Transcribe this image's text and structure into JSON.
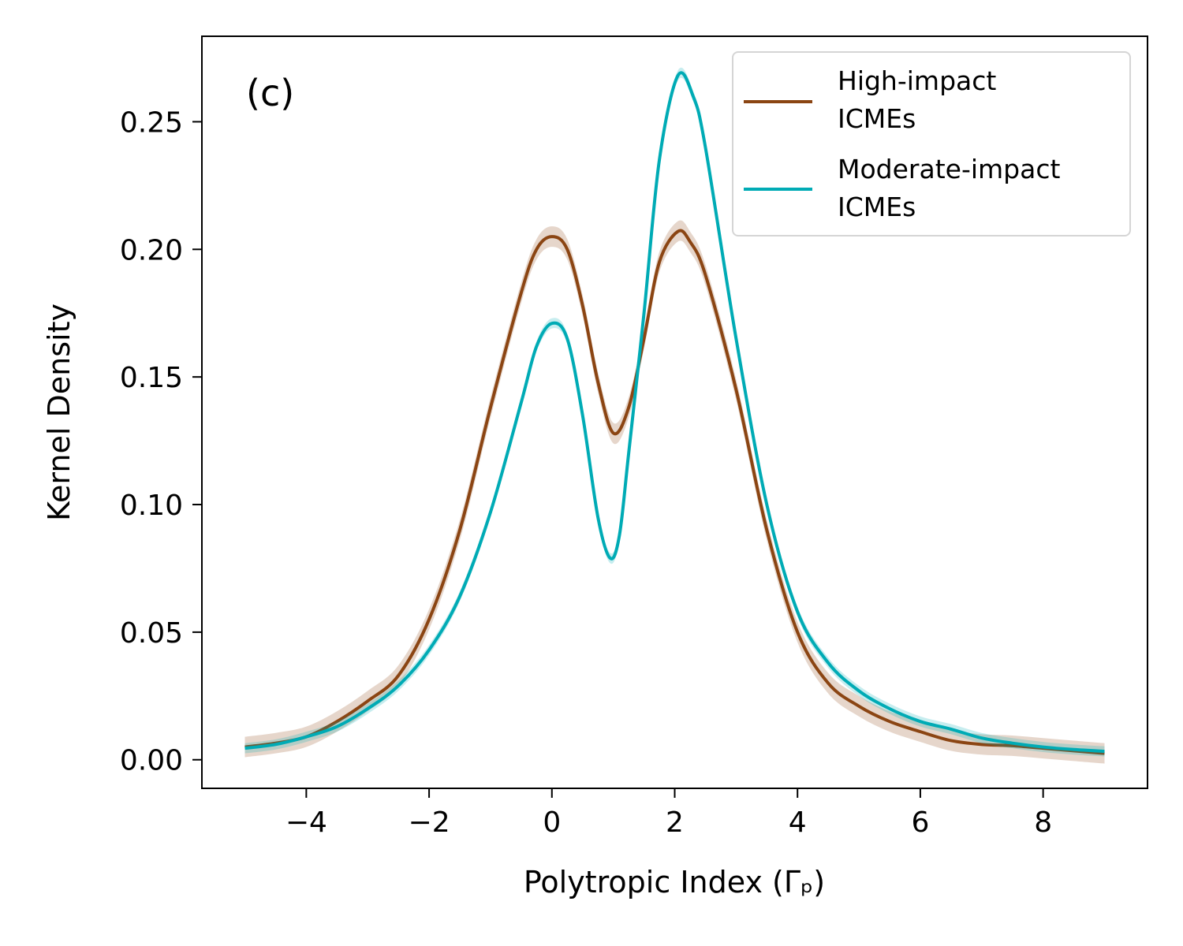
{
  "chart_data": {
    "type": "line",
    "panel_label": "(c)",
    "xlabel": "Polytropic Index (Γₚ)",
    "ylabel": "Kernel Density",
    "xlim": [
      -5.7,
      9.7
    ],
    "ylim": [
      -0.0112,
      0.2835
    ],
    "xticks": [
      -4,
      -2,
      0,
      2,
      4,
      6,
      8
    ],
    "xtick_labels": [
      "−4",
      "−2",
      "0",
      "2",
      "4",
      "6",
      "8"
    ],
    "yticks": [
      0.0,
      0.05,
      0.1,
      0.15,
      0.2,
      0.25
    ],
    "ytick_labels": [
      "0.00",
      "0.05",
      "0.10",
      "0.15",
      "0.20",
      "0.25"
    ],
    "legend_position": "top-right",
    "series": [
      {
        "name": "High-impact ICMEs",
        "legend_lines": [
          "High-impact",
          "ICMEs"
        ],
        "color": "#8B4513",
        "band": 0.004,
        "points": [
          [
            -5.0,
            0.005
          ],
          [
            -4.5,
            0.0065
          ],
          [
            -4.0,
            0.009
          ],
          [
            -3.5,
            0.015
          ],
          [
            -3.0,
            0.023
          ],
          [
            -2.5,
            0.033
          ],
          [
            -2.0,
            0.055
          ],
          [
            -1.5,
            0.09
          ],
          [
            -1.0,
            0.138
          ],
          [
            -0.5,
            0.183
          ],
          [
            -0.25,
            0.2
          ],
          [
            0.0,
            0.205
          ],
          [
            0.25,
            0.2
          ],
          [
            0.5,
            0.178
          ],
          [
            0.75,
            0.148
          ],
          [
            1.0,
            0.128
          ],
          [
            1.25,
            0.138
          ],
          [
            1.5,
            0.165
          ],
          [
            1.75,
            0.195
          ],
          [
            2.05,
            0.207
          ],
          [
            2.25,
            0.203
          ],
          [
            2.5,
            0.19
          ],
          [
            3.0,
            0.145
          ],
          [
            3.5,
            0.09
          ],
          [
            4.0,
            0.05
          ],
          [
            4.5,
            0.03
          ],
          [
            5.0,
            0.021
          ],
          [
            5.5,
            0.015
          ],
          [
            6.0,
            0.011
          ],
          [
            6.5,
            0.0075
          ],
          [
            7.0,
            0.006
          ],
          [
            7.5,
            0.0055
          ],
          [
            8.0,
            0.0045
          ],
          [
            8.5,
            0.0035
          ],
          [
            9.0,
            0.0025
          ]
        ]
      },
      {
        "name": "Moderate-impact ICMEs",
        "legend_lines": [
          "Moderate-impact",
          "ICMEs"
        ],
        "color": "#00ABB5",
        "band": 0.002,
        "points": [
          [
            -5.0,
            0.0045
          ],
          [
            -4.5,
            0.006
          ],
          [
            -4.0,
            0.009
          ],
          [
            -3.5,
            0.013
          ],
          [
            -3.0,
            0.02
          ],
          [
            -2.5,
            0.029
          ],
          [
            -2.0,
            0.043
          ],
          [
            -1.5,
            0.064
          ],
          [
            -1.0,
            0.097
          ],
          [
            -0.5,
            0.14
          ],
          [
            -0.25,
            0.162
          ],
          [
            0.0,
            0.171
          ],
          [
            0.25,
            0.165
          ],
          [
            0.5,
            0.135
          ],
          [
            0.75,
            0.095
          ],
          [
            0.95,
            0.079
          ],
          [
            1.1,
            0.088
          ],
          [
            1.25,
            0.12
          ],
          [
            1.5,
            0.175
          ],
          [
            1.75,
            0.235
          ],
          [
            2.05,
            0.268
          ],
          [
            2.3,
            0.26
          ],
          [
            2.5,
            0.24
          ],
          [
            3.0,
            0.165
          ],
          [
            3.5,
            0.1
          ],
          [
            4.0,
            0.058
          ],
          [
            4.5,
            0.038
          ],
          [
            5.0,
            0.027
          ],
          [
            5.5,
            0.02
          ],
          [
            6.0,
            0.015
          ],
          [
            6.5,
            0.012
          ],
          [
            7.0,
            0.0085
          ],
          [
            7.5,
            0.0065
          ],
          [
            8.0,
            0.005
          ],
          [
            8.5,
            0.004
          ],
          [
            9.0,
            0.0033
          ]
        ]
      }
    ]
  }
}
